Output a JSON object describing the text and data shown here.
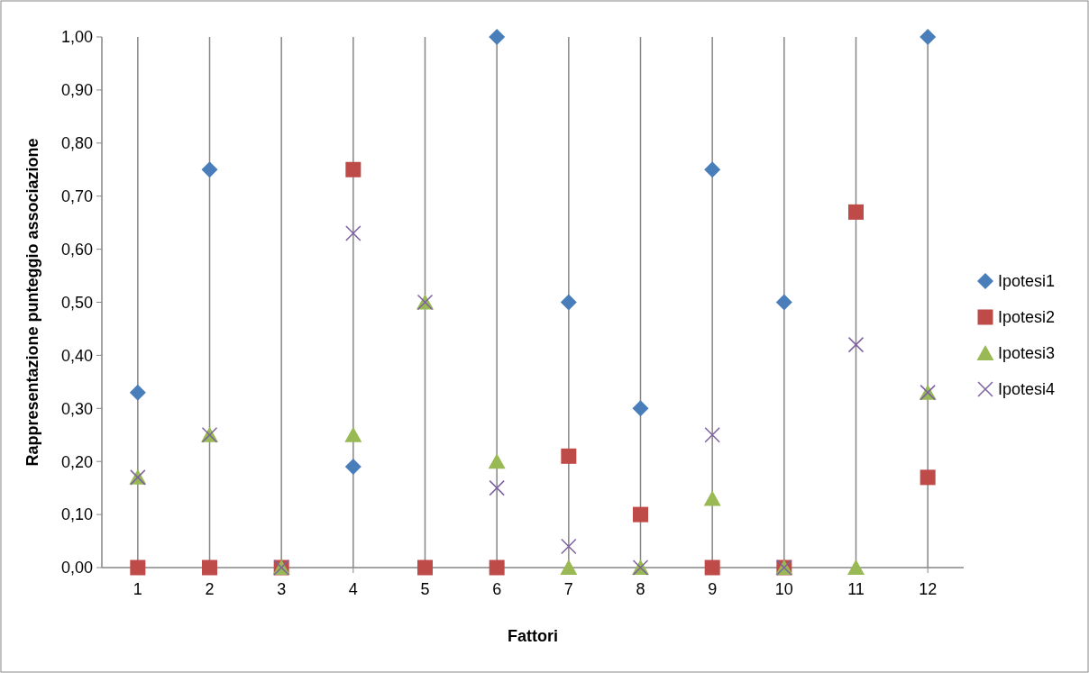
{
  "chart_data": {
    "type": "scatter",
    "xlabel": "Fattori",
    "ylabel": "Rappresentazione punteggio associazione",
    "x": [
      1,
      2,
      3,
      4,
      5,
      6,
      7,
      8,
      9,
      10,
      11,
      12
    ],
    "xlim": [
      0.5,
      12.5
    ],
    "xticks": [
      1,
      2,
      3,
      4,
      5,
      6,
      7,
      8,
      9,
      10,
      11,
      12
    ],
    "ylim": [
      0,
      1
    ],
    "yticks": [
      {
        "value": 0,
        "label": "0,00"
      },
      {
        "value": 0.1,
        "label": "0,10"
      },
      {
        "value": 0.2,
        "label": "0,20"
      },
      {
        "value": 0.3,
        "label": "0,30"
      },
      {
        "value": 0.4,
        "label": "0,40"
      },
      {
        "value": 0.5,
        "label": "0,50"
      },
      {
        "value": 0.6,
        "label": "0,60"
      },
      {
        "value": 0.7,
        "label": "0,70"
      },
      {
        "value": 0.8,
        "label": "0,80"
      },
      {
        "value": 0.9,
        "label": "0,90"
      },
      {
        "value": 1,
        "label": "1,00"
      }
    ],
    "grid": "x",
    "legend": "right",
    "series": [
      {
        "name": "Ipotesi1",
        "color": "#4a7ebb",
        "marker": "diamond",
        "values": [
          0.33,
          0.75,
          null,
          0.19,
          null,
          1,
          0.5,
          0.3,
          0.75,
          0.5,
          null,
          1
        ]
      },
      {
        "name": "Ipotesi2",
        "color": "#be4b48",
        "marker": "square",
        "values": [
          0,
          0,
          0,
          0.75,
          0,
          0,
          0.21,
          0.1,
          0,
          0,
          0.67,
          0.17
        ]
      },
      {
        "name": "Ipotesi3",
        "color": "#98b954",
        "marker": "triangle",
        "values": [
          0.17,
          0.25,
          0,
          0.25,
          0.5,
          0.2,
          0,
          0,
          0.13,
          0,
          0,
          0.33
        ]
      },
      {
        "name": "Ipotesi4",
        "color": "#7d60a0",
        "marker": "cross",
        "values": [
          0.17,
          0.25,
          0,
          0.63,
          0.5,
          0.15,
          0.04,
          0,
          0.25,
          0,
          0.42,
          0.33
        ]
      }
    ]
  }
}
